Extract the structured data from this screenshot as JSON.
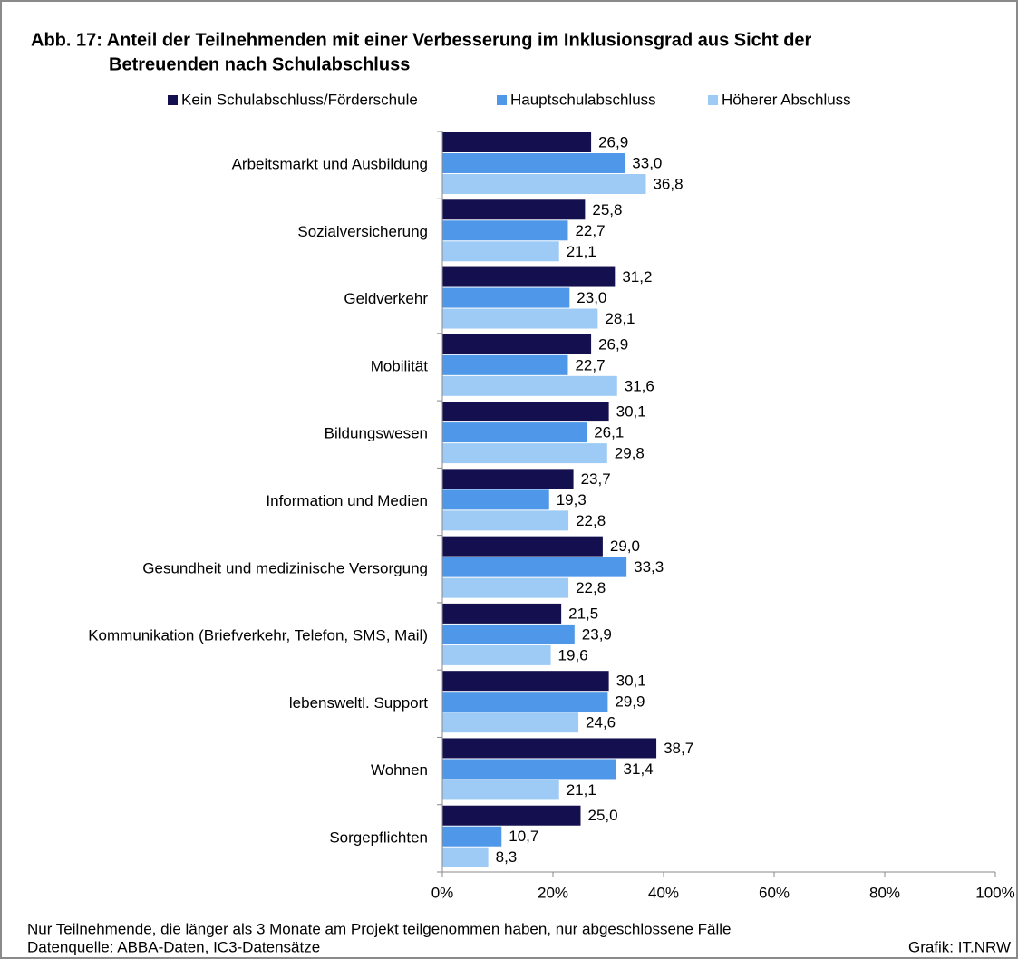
{
  "chart_data": {
    "type": "barh",
    "title": [
      "Abb. 17: Anteil der Teilnehmenden mit einer Verbesserung im Inklusionsgrad  aus Sicht der",
      "Betreuenden nach Schulabschluss"
    ],
    "categories": [
      "Arbeitsmarkt und Ausbildung",
      "Sozialversicherung",
      "Geldverkehr",
      "Mobilität",
      "Bildungswesen",
      "Information und Medien",
      "Gesundheit und medizinische Versorgung",
      "Kommunikation (Briefverkehr, Telefon, SMS, Mail)",
      "lebensweltl. Support",
      "Wohnen",
      "Sorgepflichten"
    ],
    "series": [
      {
        "name": "Kein Schulabschluss/Förderschule",
        "color": "#14104f",
        "values": [
          26.9,
          25.8,
          31.2,
          26.9,
          30.1,
          23.7,
          29.0,
          21.5,
          30.1,
          38.7,
          25.0
        ],
        "value_labels": [
          "26,9",
          "25,8",
          "31,2",
          "26,9",
          "30,1",
          "23,7",
          "29,0",
          "21,5",
          "30,1",
          "38,7",
          "25,0"
        ]
      },
      {
        "name": "Hauptschulabschluss",
        "color": "#4f97e8",
        "values": [
          33.0,
          22.7,
          23.0,
          22.7,
          26.1,
          19.3,
          33.3,
          23.9,
          29.9,
          31.4,
          10.7
        ],
        "value_labels": [
          "33,0",
          "22,7",
          "23,0",
          "22,7",
          "26,1",
          "19,3",
          "33,3",
          "23,9",
          "29,9",
          "31,4",
          "10,7"
        ]
      },
      {
        "name": "Höherer Abschluss",
        "color": "#9ecbf5",
        "values": [
          36.8,
          21.1,
          28.1,
          31.6,
          29.8,
          22.8,
          22.8,
          19.6,
          24.6,
          21.1,
          8.3
        ],
        "value_labels": [
          "36,8",
          "21,1",
          "28,1",
          "31,6",
          "29,8",
          "22,8",
          "22,8",
          "19,6",
          "24,6",
          "21,1",
          "8,3"
        ]
      }
    ],
    "xlim": [
      0,
      100
    ],
    "xticks": [
      {
        "value": 0,
        "label": "0%"
      },
      {
        "value": 20,
        "label": "20%"
      },
      {
        "value": 40,
        "label": "40%"
      },
      {
        "value": 60,
        "label": "60%"
      },
      {
        "value": 80,
        "label": "80%"
      },
      {
        "value": 100,
        "label": "100%"
      }
    ],
    "legend": "top",
    "notes": [
      "Nur Teilnehmende,  die länger als 3 Monate am Projekt teilgenommen  haben, nur abgeschlossene  Fälle",
      "Datenquelle:  ABBA-Daten,  IC3-Datensätze"
    ],
    "credit": "Grafik:  IT.NRW"
  }
}
